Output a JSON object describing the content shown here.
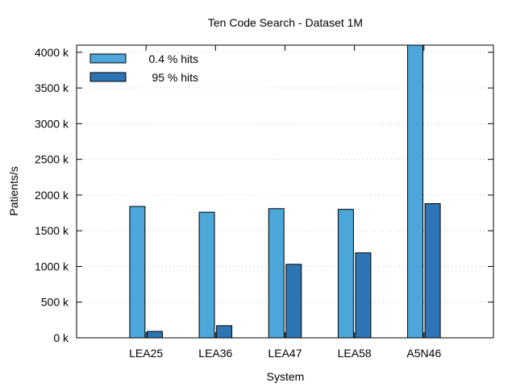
{
  "chart_data": {
    "type": "bar",
    "title": "Ten Code Search - Dataset 1M",
    "xlabel": "System",
    "ylabel": "Patients/s",
    "categories": [
      "LEA25",
      "LEA36",
      "LEA47",
      "LEA58",
      "A5N46"
    ],
    "series": [
      {
        "name": "0.4 % hits",
        "values": [
          1840000,
          1760000,
          1810000,
          1800000,
          4100000
        ],
        "color": "#4da6d9"
      },
      {
        "name": " 95 % hits",
        "values": [
          90000,
          170000,
          1030000,
          1190000,
          1880000
        ],
        "color": "#2e75b6"
      }
    ],
    "ylim": [
      0,
      4100000
    ],
    "yticks": [
      0,
      500000,
      1000000,
      1500000,
      2000000,
      2500000,
      3000000,
      3500000,
      4000000
    ],
    "ytick_labels": [
      "0 k",
      "500 k",
      "1000 k",
      "1500 k",
      "2000 k",
      "2500 k",
      "3000 k",
      "3500 k",
      "4000 k"
    ],
    "grid": true,
    "legend_position": "top-left"
  }
}
